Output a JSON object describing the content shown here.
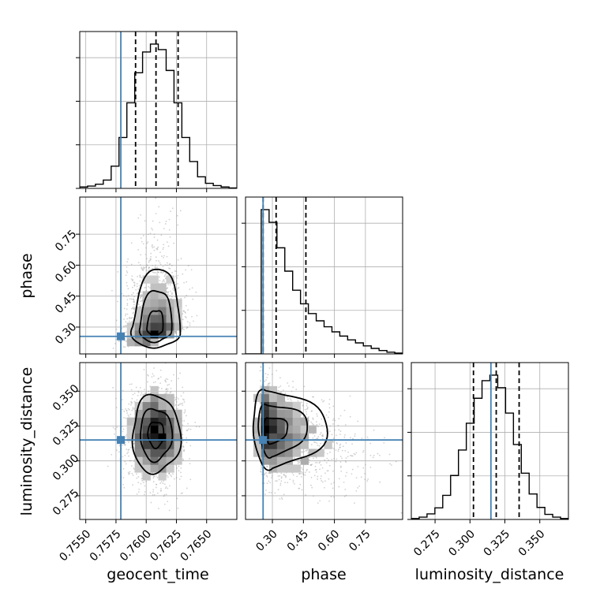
{
  "chart_data": {
    "type": "corner",
    "parameters": [
      "geocent_time",
      "phase",
      "luminosity_distance"
    ],
    "grid": true,
    "colors": {
      "truth": "#4682b4",
      "histogram": "#000000",
      "quantile": "#000000",
      "grid": "#b0b0b0",
      "points": "#9a9a9a"
    },
    "ranges": {
      "geocent_time": [
        0.7545,
        0.7675
      ],
      "phase": [
        0.17,
        0.93
      ],
      "luminosity_distance": [
        0.258,
        0.3705
      ]
    },
    "truths": {
      "geocent_time": 0.7579,
      "phase": 0.255,
      "luminosity_distance": 0.315
    },
    "quantiles": {
      "geocent_time": [
        0.75912,
        0.76081,
        0.76264
      ],
      "phase": [
        0.255,
        0.318,
        0.462
      ],
      "luminosity_distance": [
        0.3025,
        0.3188,
        0.3352
      ]
    },
    "ticks": {
      "geocent_time": {
        "values": [
          0.755,
          0.7575,
          0.76,
          0.7625,
          0.765
        ],
        "labels": [
          "0.7550",
          "0.7575",
          "0.7600",
          "0.7625",
          "0.7650"
        ]
      },
      "phase": {
        "values": [
          0.3,
          0.45,
          0.6,
          0.75
        ],
        "labels": [
          "0.30",
          "0.45",
          "0.60",
          "0.75"
        ]
      },
      "luminosity_distance": {
        "values": [
          0.275,
          0.3,
          0.325,
          0.35
        ],
        "labels": [
          "0.275",
          "0.300",
          "0.325",
          "0.350"
        ]
      }
    },
    "marginals": {
      "geocent_time": {
        "bin_edges": [
          0.7545,
          0.75515,
          0.7558,
          0.75645,
          0.7571,
          0.75775,
          0.7584,
          0.75905,
          0.7597,
          0.76035,
          0.761,
          0.76165,
          0.7623,
          0.76295,
          0.7636,
          0.76425,
          0.7649,
          0.76555,
          0.7662,
          0.76685,
          0.7675
        ],
        "counts": [
          3,
          5,
          9,
          18,
          48,
          110,
          185,
          250,
          295,
          312,
          300,
          255,
          185,
          110,
          58,
          25,
          11,
          6,
          3,
          1
        ]
      },
      "phase": {
        "bin_edges": [
          0.17,
          0.208,
          0.246,
          0.284,
          0.322,
          0.36,
          0.398,
          0.436,
          0.474,
          0.512,
          0.55,
          0.588,
          0.626,
          0.664,
          0.702,
          0.74,
          0.778,
          0.816,
          0.854,
          0.892,
          0.93
        ],
        "counts": [
          0,
          0,
          340,
          310,
          250,
          195,
          150,
          118,
          95,
          78,
          64,
          52,
          42,
          33,
          26,
          19,
          13,
          8,
          4,
          2
        ]
      },
      "luminosity_distance": {
        "bin_edges": [
          0.258,
          0.26363,
          0.26925,
          0.27488,
          0.2805,
          0.28613,
          0.29175,
          0.29738,
          0.303,
          0.30863,
          0.31425,
          0.31988,
          0.3255,
          0.33113,
          0.33675,
          0.34238,
          0.348,
          0.35363,
          0.35925,
          0.36488,
          0.3705
        ],
        "counts": [
          2,
          5,
          12,
          25,
          52,
          95,
          150,
          208,
          262,
          300,
          312,
          285,
          230,
          162,
          100,
          55,
          26,
          11,
          5,
          2
        ]
      }
    },
    "joints": [
      {
        "x": "geocent_time",
        "y": "phase",
        "mean": [
          0.7607,
          0.29
        ],
        "std": [
          0.0011,
          0.1
        ],
        "rho": 0.35
      },
      {
        "x": "geocent_time",
        "y": "luminosity_distance",
        "mean": [
          0.7608,
          0.319
        ],
        "std": [
          0.0011,
          0.0155
        ],
        "rho": 0.0
      },
      {
        "x": "phase",
        "y": "luminosity_distance",
        "mean": [
          0.285,
          0.322
        ],
        "std": [
          0.08,
          0.0155
        ],
        "rho": -0.25
      }
    ],
    "xlabel": {
      "geocent_time": "geocent_time",
      "phase": "phase",
      "luminosity_distance": "luminosity_distance"
    },
    "ylabel": {
      "phase": "phase",
      "luminosity_distance": "luminosity_distance"
    }
  }
}
